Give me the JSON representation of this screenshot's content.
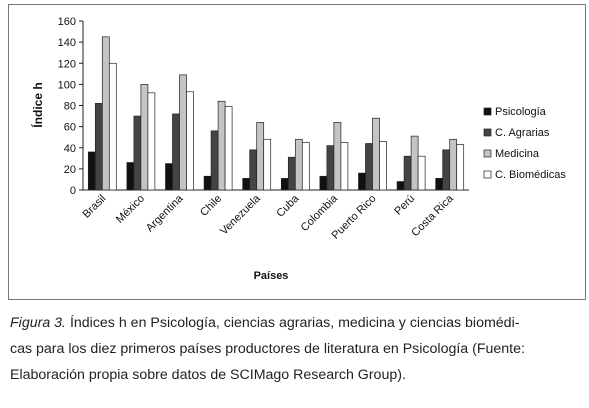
{
  "chart_data": {
    "type": "bar",
    "title": "",
    "xlabel": "Países",
    "ylabel": "Índice h",
    "ylim": [
      0,
      160
    ],
    "yticks": [
      0,
      20,
      40,
      60,
      80,
      100,
      120,
      140,
      160
    ],
    "grid": false,
    "legend_position": "right",
    "categories": [
      "Brasil",
      "México",
      "Argentina",
      "Chile",
      "Venezuela",
      "Cuba",
      "Colombia",
      "Puerto Rico",
      "Perú",
      "Costa Rica"
    ],
    "series": [
      {
        "name": "Psicología",
        "color": "#111111",
        "values": [
          36,
          26,
          25,
          13,
          11,
          11,
          13,
          16,
          8,
          11
        ]
      },
      {
        "name": "C. Agrarias",
        "color": "#444444",
        "values": [
          82,
          70,
          72,
          56,
          38,
          31,
          42,
          44,
          32,
          38
        ]
      },
      {
        "name": "Medicina",
        "color": "#c4c4c4",
        "values": [
          145,
          100,
          109,
          84,
          64,
          48,
          64,
          68,
          51,
          48
        ]
      },
      {
        "name": "C. Biomédicas",
        "color": "#ffffff",
        "values": [
          120,
          92,
          93,
          79,
          48,
          45,
          45,
          46,
          32,
          43
        ]
      }
    ]
  },
  "caption": {
    "label": "Figura 3.",
    "line1": "Índices h en Psicología, ciencias agrarias, medicina y ciencias biomédi-",
    "line2": "cas para los diez primeros países productores de literatura en Psicología (Fuente:",
    "line3": "Elaboración propia sobre datos de SCIMago Research Group)."
  }
}
